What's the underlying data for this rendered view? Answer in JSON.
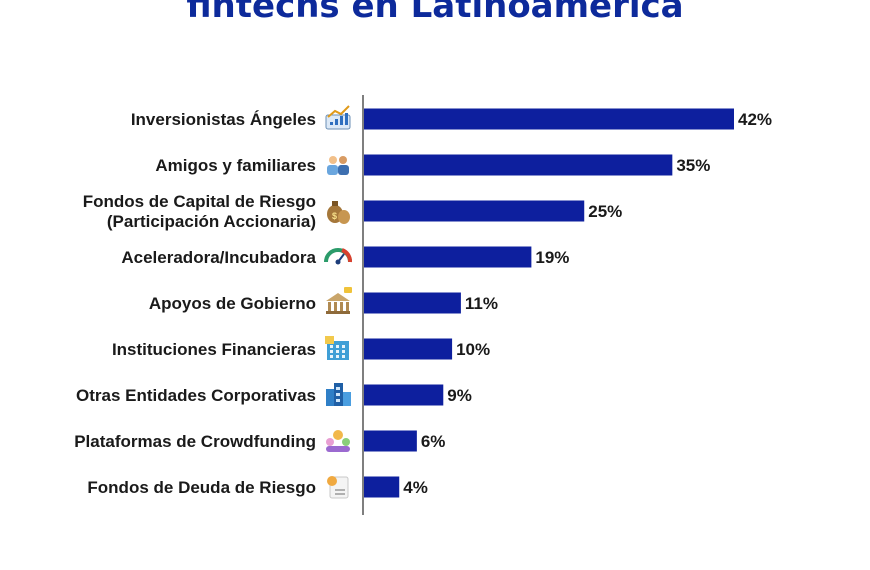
{
  "title": "fintechs en Latinoamérica",
  "colors": {
    "bar": "#0d1f9e",
    "axis": "#555555",
    "title": "#0d2a9b"
  },
  "chart_data": {
    "type": "bar",
    "orientation": "horizontal",
    "title": "fintechs en Latinoamérica",
    "categories": [
      [
        "Inversionistas Ángeles"
      ],
      [
        "Amigos y familiares"
      ],
      [
        "Fondos de Capital de Riesgo",
        "(Participación Accionaria)"
      ],
      [
        "Aceleradora/Incubadora"
      ],
      [
        "Apoyos de Gobierno"
      ],
      [
        "Instituciones Financieras"
      ],
      [
        "Otras Entidades Corporativas"
      ],
      [
        "Plataformas de Crowdfunding"
      ],
      [
        "Fondos de Deuda de Riesgo"
      ]
    ],
    "values": [
      42,
      35,
      25,
      19,
      11,
      10,
      9,
      6,
      4
    ],
    "value_labels": [
      "42%",
      "35%",
      "25%",
      "19%",
      "11%",
      "10%",
      "9%",
      "6%",
      "4%"
    ],
    "icons": [
      "growth-chart-icon",
      "people-icon",
      "money-bags-icon",
      "speedometer-icon",
      "government-building-icon",
      "bank-building-icon",
      "office-buildings-icon",
      "crowd-people-icon",
      "loan-document-icon"
    ],
    "xlim": [
      0,
      42
    ],
    "grid": false,
    "legend": false
  }
}
